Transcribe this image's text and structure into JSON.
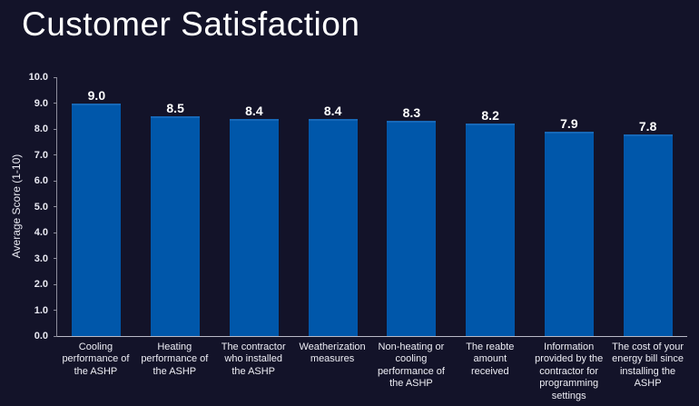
{
  "page": {
    "title": "Customer Satisfaction"
  },
  "colors": {
    "background": "#131329",
    "bar": "#0057AA",
    "bar_highlight": "#1668B8",
    "text": "#FFFFFF",
    "axis": "#8E8E9D"
  },
  "chart_data": {
    "type": "bar",
    "title": "Customer Satisfaction",
    "categories": [
      "Cooling performance of the ASHP",
      "Heating performance of the ASHP",
      "The contractor who installed the ASHP",
      "Weatherization measures",
      "Non-heating or cooling performance of the ASHP",
      "The reabte amount received",
      "Information provided by the contractor for programming settings",
      "The cost of your energy bill since installing the ASHP"
    ],
    "values": [
      9.0,
      8.5,
      8.4,
      8.4,
      8.3,
      8.2,
      7.9,
      7.8
    ],
    "value_labels": [
      "9.0",
      "8.5",
      "8.4",
      "8.4",
      "8.3",
      "8.2",
      "7.9",
      "7.8"
    ],
    "xlabel": "",
    "ylabel": "Average Score (1-10)",
    "ylim": [
      0,
      10
    ],
    "ytick_step": 1,
    "ytick_labels": [
      "0.0",
      "1.0",
      "2.0",
      "3.0",
      "4.0",
      "5.0",
      "6.0",
      "7.0",
      "8.0",
      "9.0",
      "10.0"
    ],
    "grid": false,
    "legend": null,
    "bar_label_position": "above"
  }
}
